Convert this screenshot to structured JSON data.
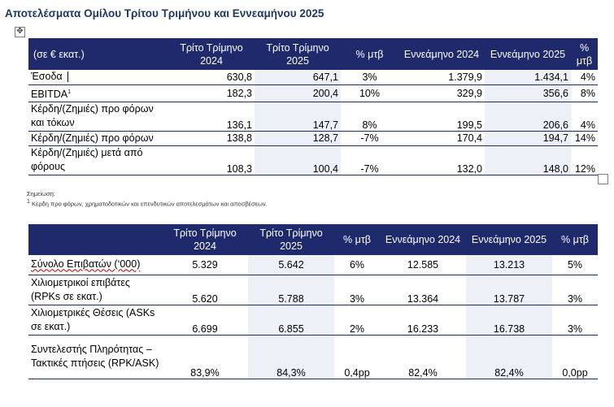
{
  "title": "Αποτελέσματα Ομίλου Τρίτου Τριμήνου και Εννεαμήνου 2025",
  "table1": {
    "headers": [
      "(σε € εκατ.)",
      "Τρίτο Τρίμηνο 2024",
      "Τρίτο Τρίμηνο 2025",
      "% μτβ",
      "Εννεάμηνο 2024",
      "Εννεάμηνο 2025",
      "% μτβ"
    ],
    "rows": [
      [
        "Έσοδα",
        "630,8",
        "647,1",
        "3%",
        "1.379,9",
        "1.434,1",
        "4%"
      ],
      [
        "EBITDA",
        "182,3",
        "200,4",
        "10%",
        "329,9",
        "356,6",
        "8%"
      ],
      [
        "Κέρδη/(Ζημιές) προ φόρων και τόκων",
        "136,1",
        "147,7",
        "8%",
        "199,5",
        "206,6",
        "4%"
      ],
      [
        "Κέρδη/(Ζημιές) προ φόρων",
        "138,8",
        "128,7",
        "-7%",
        "170,4",
        "194,7",
        "14%"
      ],
      [
        "Κέρδη/(Ζημιές) μετά από φόρους",
        "108,3",
        "100,4",
        "-7%",
        "132,0",
        "148,0",
        "12%"
      ]
    ],
    "footnote_mark": "1"
  },
  "notes": {
    "heading": "Σημείωση:",
    "footnote_mark": "1",
    "footnote": "Κέρδη προ φόρων, χρηματοδοτικών και επενδυτικών αποτελεσμάτων και αποσβέσεων."
  },
  "table2": {
    "headers": [
      "",
      "Τρίτο Τρίμηνο 2024",
      "Τρίτο Τρίμηνο 2025",
      "% μτβ",
      "Εννεάμηνο 2024",
      "Εννεάμηνο 2025",
      "% μτβ"
    ],
    "rows": [
      [
        "Σύνολο Επιβατών (‘000)",
        "5.329",
        "5.642",
        "6%",
        "12.585",
        "13.213",
        "5%"
      ],
      [
        "Χιλιομετρικοί επιβάτες (RPKs σε εκατ.)",
        "5.620",
        "5.788",
        "3%",
        "13.364",
        "13.787",
        "3%"
      ],
      [
        "Χιλιομετρικές Θέσεις (ASKs σε εκατ.)",
        "6.699",
        "6.855",
        "2%",
        "16.233",
        "16.738",
        "3%"
      ],
      [
        "Συντελεστής Πληρότητας – Τακτικές πτήσεις (RPK/ASK)",
        "83,9%",
        "84,3%",
        "0,4pp",
        "82,4%",
        "82,4%",
        "0,0pp"
      ]
    ]
  },
  "icons": {
    "move": "move-icon",
    "resize": "resize-handle-icon"
  }
}
